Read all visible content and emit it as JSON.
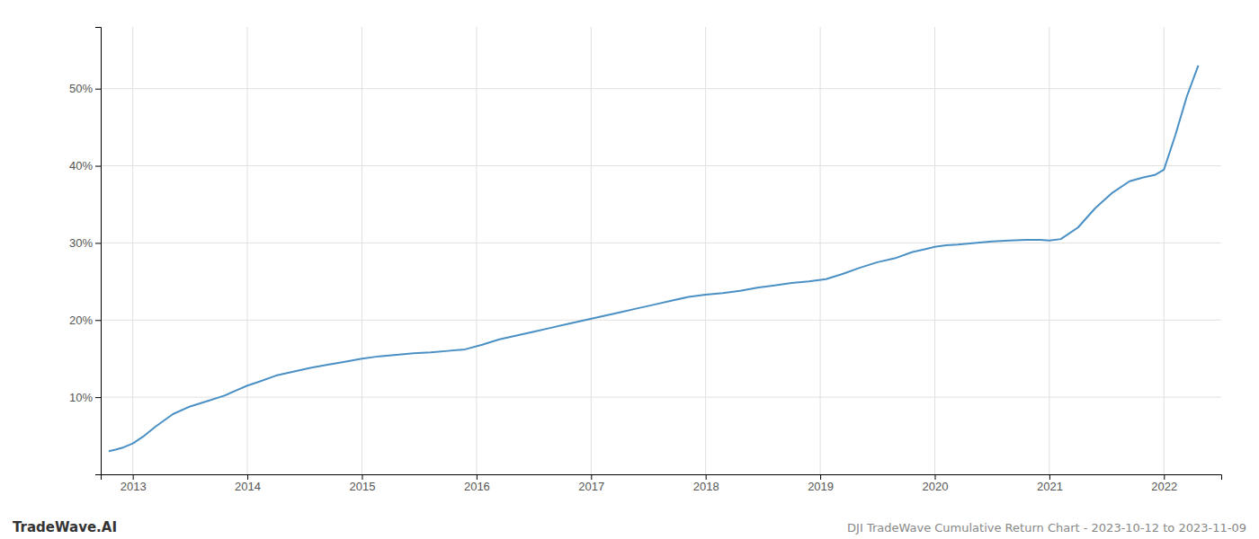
{
  "chart_data": {
    "type": "line",
    "title": "DJI TradeWave Cumulative Return Chart - 2023-10-12 to 2023-11-09",
    "annotations": [
      "TradeWave.AI"
    ],
    "color": "#4a90c4",
    "grid": true,
    "x": [
      2012.79,
      2012.85,
      2012.92,
      2013.0,
      2013.1,
      2013.2,
      2013.35,
      2013.5,
      2013.65,
      2013.8,
      2013.92,
      2014.0,
      2014.1,
      2014.25,
      2014.4,
      2014.55,
      2014.7,
      2014.85,
      2015.0,
      2015.15,
      2015.3,
      2015.45,
      2015.6,
      2015.75,
      2015.9,
      2016.05,
      2016.2,
      2016.35,
      2016.5,
      2016.65,
      2016.8,
      2016.95,
      2017.1,
      2017.25,
      2017.4,
      2017.55,
      2017.7,
      2017.85,
      2018.0,
      2018.15,
      2018.3,
      2018.45,
      2018.6,
      2018.75,
      2018.9,
      2019.05,
      2019.2,
      2019.35,
      2019.5,
      2019.65,
      2019.8,
      2019.92,
      2020.0,
      2020.1,
      2020.2,
      2020.35,
      2020.5,
      2020.65,
      2020.8,
      2020.92,
      2021.0,
      2021.1,
      2021.25,
      2021.4,
      2021.55,
      2021.7,
      2021.82,
      2021.92,
      2022.0,
      2022.1,
      2022.2,
      2022.3
    ],
    "values": [
      3.0,
      3.2,
      3.5,
      4.0,
      5.0,
      6.2,
      7.8,
      8.8,
      9.5,
      10.2,
      11.0,
      11.5,
      12.0,
      12.8,
      13.3,
      13.8,
      14.2,
      14.6,
      15.0,
      15.3,
      15.5,
      15.7,
      15.8,
      16.0,
      16.2,
      16.8,
      17.5,
      18.0,
      18.5,
      19.0,
      19.5,
      20.0,
      20.5,
      21.0,
      21.5,
      22.0,
      22.5,
      23.0,
      23.3,
      23.5,
      23.8,
      24.2,
      24.5,
      24.8,
      25.0,
      25.3,
      26.0,
      26.8,
      27.5,
      28.0,
      28.8,
      29.2,
      29.5,
      29.7,
      29.8,
      30.0,
      30.2,
      30.3,
      30.4,
      30.4,
      30.3,
      30.5,
      32.0,
      34.5,
      36.5,
      38.0,
      38.5,
      38.8,
      39.5,
      44.0,
      49.0,
      53.0
    ],
    "xlim": [
      2012.72,
      2022.5
    ],
    "xticks": [
      2013,
      2014,
      2015,
      2016,
      2017,
      2018,
      2019,
      2020,
      2021,
      2022
    ],
    "ylim": [
      0,
      58
    ],
    "yticks": [
      {
        "value": 10,
        "label": "10%"
      },
      {
        "value": 20,
        "label": "20%"
      },
      {
        "value": 30,
        "label": "30%"
      },
      {
        "value": 40,
        "label": "40%"
      },
      {
        "value": 50,
        "label": "50%"
      }
    ]
  }
}
